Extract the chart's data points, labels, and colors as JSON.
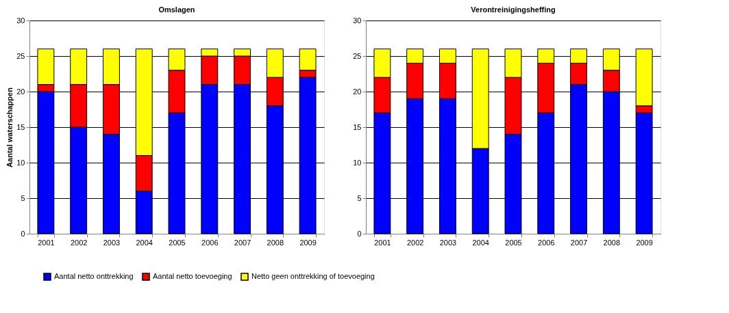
{
  "chart_data": [
    {
      "type": "bar",
      "title": "Omslagen",
      "ylabel": "Aantal waterschappen",
      "stacked": true,
      "categories": [
        "2001",
        "2002",
        "2003",
        "2004",
        "2005",
        "2006",
        "2007",
        "2008",
        "2009"
      ],
      "ylim": [
        0,
        30
      ],
      "yticks": [
        0,
        5,
        10,
        15,
        20,
        25,
        30
      ],
      "grid": "y",
      "legend": "bottom",
      "series": [
        {
          "name": "Aantal netto onttrekking",
          "color": "#0000ff",
          "values": [
            20,
            15,
            14,
            6,
            17,
            21,
            21,
            18,
            22
          ]
        },
        {
          "name": "Aantal netto toevoeging",
          "color": "#ff0000",
          "values": [
            1,
            6,
            7,
            5,
            6,
            4,
            4,
            4,
            1
          ]
        },
        {
          "name": "Netto geen onttrekking of toevoeging",
          "color": "#ffff00",
          "values": [
            5,
            5,
            5,
            15,
            3,
            1,
            1,
            4,
            3
          ]
        }
      ]
    },
    {
      "type": "bar",
      "title": "Verontreinigingsheffing",
      "stacked": true,
      "categories": [
        "2001",
        "2002",
        "2003",
        "2004",
        "2005",
        "2006",
        "2007",
        "2008",
        "2009"
      ],
      "ylim": [
        0,
        30
      ],
      "yticks": [
        0,
        5,
        10,
        15,
        20,
        25,
        30
      ],
      "grid": "y",
      "legend": "bottom",
      "series": [
        {
          "name": "Aantal netto onttrekking",
          "color": "#0000ff",
          "values": [
            17,
            19,
            19,
            12,
            14,
            17,
            21,
            20,
            17
          ]
        },
        {
          "name": "Aantal netto toevoeging",
          "color": "#ff0000",
          "values": [
            5,
            5,
            5,
            0,
            8,
            7,
            3,
            3,
            1
          ]
        },
        {
          "name": "Netto geen onttrekking of toevoeging",
          "color": "#ffff00",
          "values": [
            4,
            2,
            2,
            14,
            4,
            2,
            2,
            3,
            8
          ]
        }
      ]
    }
  ]
}
